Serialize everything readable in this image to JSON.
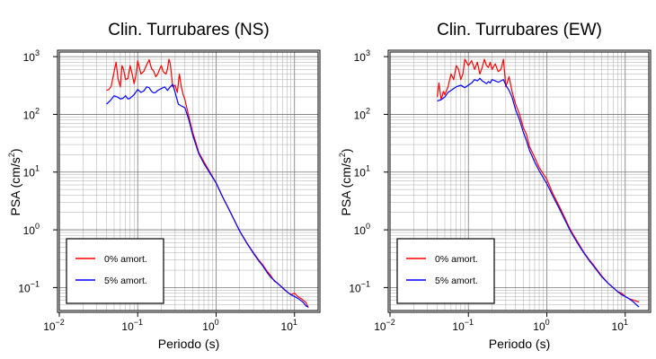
{
  "chart_data": [
    {
      "type": "line",
      "title": "Clin. Turrubares (NS)",
      "xlabel": "Periodo (s)",
      "ylabel_main": "PSA (cm/s",
      "ylabel_sup": "2",
      "ylabel_tail": ")",
      "xscale": "log",
      "yscale": "log",
      "xlim": [
        0.01,
        20
      ],
      "ylim": [
        0.04,
        1200
      ],
      "grid": true,
      "legend_position": "bottom-left",
      "xticks": [
        {
          "base": "10",
          "exp": "−2"
        },
        {
          "base": "10",
          "exp": "−1"
        },
        {
          "base": "10",
          "exp": "0"
        },
        {
          "base": "10",
          "exp": "1"
        }
      ],
      "yticks": [
        {
          "base": "10",
          "exp": "−1"
        },
        {
          "base": "10",
          "exp": "0"
        },
        {
          "base": "10",
          "exp": "1"
        },
        {
          "base": "10",
          "exp": "2"
        },
        {
          "base": "10",
          "exp": "3"
        }
      ],
      "series": [
        {
          "name": "0% amort.",
          "color": "#ff0000",
          "x": [
            0.04,
            0.043,
            0.046,
            0.05,
            0.053,
            0.056,
            0.06,
            0.063,
            0.066,
            0.07,
            0.075,
            0.08,
            0.085,
            0.09,
            0.095,
            0.1,
            0.11,
            0.12,
            0.13,
            0.14,
            0.15,
            0.16,
            0.17,
            0.18,
            0.19,
            0.2,
            0.21,
            0.22,
            0.23,
            0.24,
            0.25,
            0.26,
            0.28,
            0.3,
            0.32,
            0.34,
            0.36,
            0.38,
            0.4,
            0.45,
            0.5,
            0.55,
            0.6,
            0.7,
            0.8,
            1.0,
            1.2,
            1.5,
            2.0,
            2.5,
            3.0,
            3.5,
            4.0,
            4.5,
            5.0,
            5.5,
            6.0,
            6.5,
            7.0,
            7.5,
            8.0,
            9.0,
            10.0,
            11.0,
            12.0,
            13.0,
            14.0,
            15.0
          ],
          "y": [
            260,
            270,
            310,
            550,
            800,
            420,
            300,
            700,
            600,
            400,
            420,
            700,
            500,
            340,
            480,
            850,
            500,
            560,
            720,
            880,
            620,
            560,
            450,
            500,
            600,
            700,
            560,
            520,
            500,
            620,
            900,
            760,
            300,
            320,
            240,
            500,
            300,
            220,
            180,
            90,
            50,
            33,
            22,
            15,
            11,
            6.5,
            3.8,
            2.1,
            0.95,
            0.58,
            0.4,
            0.3,
            0.24,
            0.19,
            0.16,
            0.13,
            0.12,
            0.11,
            0.1,
            0.09,
            0.085,
            0.075,
            0.08,
            0.07,
            0.065,
            0.06,
            0.055,
            0.045
          ]
        },
        {
          "name": "5% amort.",
          "color": "#0000ff",
          "x": [
            0.04,
            0.045,
            0.05,
            0.055,
            0.06,
            0.065,
            0.07,
            0.075,
            0.08,
            0.09,
            0.1,
            0.11,
            0.12,
            0.13,
            0.14,
            0.15,
            0.16,
            0.17,
            0.18,
            0.2,
            0.22,
            0.24,
            0.26,
            0.28,
            0.3,
            0.33,
            0.36,
            0.4,
            0.45,
            0.5,
            0.55,
            0.6,
            0.7,
            0.8,
            1.0,
            1.2,
            1.5,
            2.0,
            2.5,
            3.0,
            3.5,
            4.0,
            4.5,
            5.0,
            6.0,
            7.0,
            8.0,
            9.0,
            10.0,
            11.0,
            12.0,
            13.0,
            14.0,
            15.0
          ],
          "y": [
            150,
            175,
            210,
            200,
            185,
            190,
            210,
            185,
            190,
            220,
            270,
            240,
            255,
            300,
            290,
            250,
            235,
            240,
            260,
            280,
            300,
            260,
            300,
            330,
            240,
            150,
            140,
            130,
            80,
            45,
            30,
            21,
            14,
            10.5,
            6.5,
            3.8,
            2.1,
            0.95,
            0.57,
            0.39,
            0.29,
            0.23,
            0.18,
            0.15,
            0.12,
            0.1,
            0.085,
            0.075,
            0.07,
            0.065,
            0.06,
            0.055,
            0.048,
            0.046
          ]
        }
      ]
    },
    {
      "type": "line",
      "title": "Clin. Turrubares (EW)",
      "xlabel": "Periodo (s)",
      "ylabel_main": "PSA (cm/s",
      "ylabel_sup": "2",
      "ylabel_tail": ")",
      "xscale": "log",
      "yscale": "log",
      "xlim": [
        0.01,
        20
      ],
      "ylim": [
        0.04,
        1200
      ],
      "grid": true,
      "legend_position": "bottom-left",
      "xticks": [
        {
          "base": "10",
          "exp": "−2"
        },
        {
          "base": "10",
          "exp": "−1"
        },
        {
          "base": "10",
          "exp": "0"
        },
        {
          "base": "10",
          "exp": "1"
        }
      ],
      "yticks": [
        {
          "base": "10",
          "exp": "−1"
        },
        {
          "base": "10",
          "exp": "0"
        },
        {
          "base": "10",
          "exp": "1"
        },
        {
          "base": "10",
          "exp": "2"
        },
        {
          "base": "10",
          "exp": "3"
        }
      ],
      "series": [
        {
          "name": "0% amort.",
          "color": "#ff0000",
          "x": [
            0.04,
            0.042,
            0.045,
            0.048,
            0.05,
            0.055,
            0.06,
            0.065,
            0.07,
            0.075,
            0.08,
            0.085,
            0.09,
            0.1,
            0.11,
            0.12,
            0.13,
            0.14,
            0.15,
            0.16,
            0.17,
            0.18,
            0.19,
            0.2,
            0.22,
            0.24,
            0.26,
            0.28,
            0.3,
            0.33,
            0.36,
            0.4,
            0.45,
            0.5,
            0.55,
            0.6,
            0.7,
            0.8,
            1.0,
            1.2,
            1.5,
            2.0,
            2.5,
            3.0,
            3.5,
            4.0,
            5.0,
            6.0,
            7.0,
            8.0,
            9.0,
            10.0,
            11.0,
            12.0,
            13.0,
            14.0,
            15.0
          ],
          "y": [
            200,
            350,
            180,
            250,
            220,
            300,
            500,
            400,
            700,
            600,
            400,
            500,
            900,
            700,
            850,
            600,
            800,
            500,
            650,
            900,
            700,
            650,
            800,
            600,
            750,
            550,
            600,
            900,
            300,
            450,
            250,
            150,
            100,
            60,
            45,
            28,
            18,
            12,
            7.5,
            4.2,
            2.3,
            1.0,
            0.6,
            0.4,
            0.3,
            0.24,
            0.16,
            0.12,
            0.1,
            0.085,
            0.08,
            0.07,
            0.065,
            0.062,
            0.06,
            0.058,
            0.056
          ]
        },
        {
          "name": "5% amort.",
          "color": "#0000ff",
          "x": [
            0.04,
            0.045,
            0.05,
            0.055,
            0.06,
            0.065,
            0.07,
            0.08,
            0.09,
            0.1,
            0.11,
            0.12,
            0.13,
            0.14,
            0.15,
            0.16,
            0.17,
            0.18,
            0.19,
            0.2,
            0.22,
            0.24,
            0.26,
            0.28,
            0.3,
            0.33,
            0.36,
            0.4,
            0.45,
            0.5,
            0.55,
            0.6,
            0.7,
            0.8,
            1.0,
            1.2,
            1.5,
            2.0,
            2.5,
            3.0,
            3.5,
            4.0,
            5.0,
            6.0,
            7.0,
            8.0,
            9.0,
            10.0,
            11.0,
            12.0,
            13.0,
            14.0,
            15.0
          ],
          "y": [
            170,
            180,
            200,
            240,
            260,
            280,
            300,
            320,
            290,
            320,
            350,
            400,
            380,
            420,
            380,
            360,
            340,
            370,
            350,
            400,
            380,
            360,
            380,
            400,
            320,
            260,
            200,
            120,
            80,
            50,
            35,
            24,
            15,
            10.5,
            6.3,
            3.8,
            2.1,
            0.95,
            0.57,
            0.39,
            0.29,
            0.23,
            0.155,
            0.12,
            0.1,
            0.085,
            0.075,
            0.07,
            0.065,
            0.06,
            0.055,
            0.05,
            0.046
          ]
        }
      ]
    }
  ]
}
